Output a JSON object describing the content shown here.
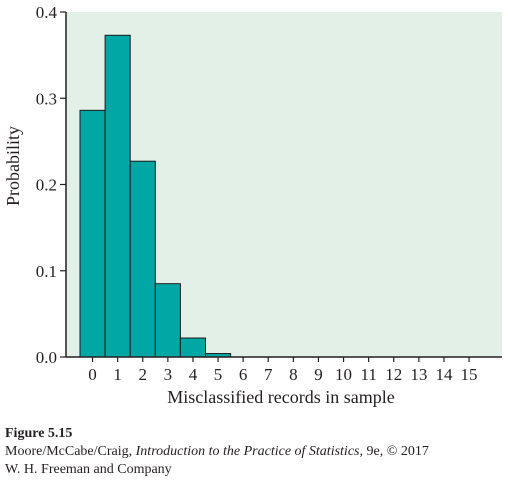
{
  "chart_data": {
    "type": "bar",
    "categories": [
      "0",
      "1",
      "2",
      "3",
      "4",
      "5",
      "6",
      "7",
      "8",
      "9",
      "10",
      "11",
      "12",
      "13",
      "14",
      "15"
    ],
    "values": [
      0.286,
      0.373,
      0.227,
      0.085,
      0.022,
      0.004,
      0,
      0,
      0,
      0,
      0,
      0,
      0,
      0,
      0,
      0
    ],
    "title": "",
    "xlabel": "Misclassified records in sample",
    "ylabel": "Probability",
    "ylim": [
      0,
      0.4
    ],
    "yticks": [
      "0.0",
      "0.1",
      "0.2",
      "0.3",
      "0.4"
    ],
    "grid": false,
    "colors": {
      "plot_background": "#e2f0e8",
      "bar_fill": "#00a7a4",
      "bar_stroke": "#1a1a1a",
      "axis": "#231f20"
    }
  },
  "caption": {
    "figure": "Figure 5.15",
    "authors": "Moore/McCabe/Craig, ",
    "book": "Introduction to the Practice of Statistics,",
    "edition": " 9e, © 2017",
    "publisher": "W. H. Freeman and Company"
  }
}
